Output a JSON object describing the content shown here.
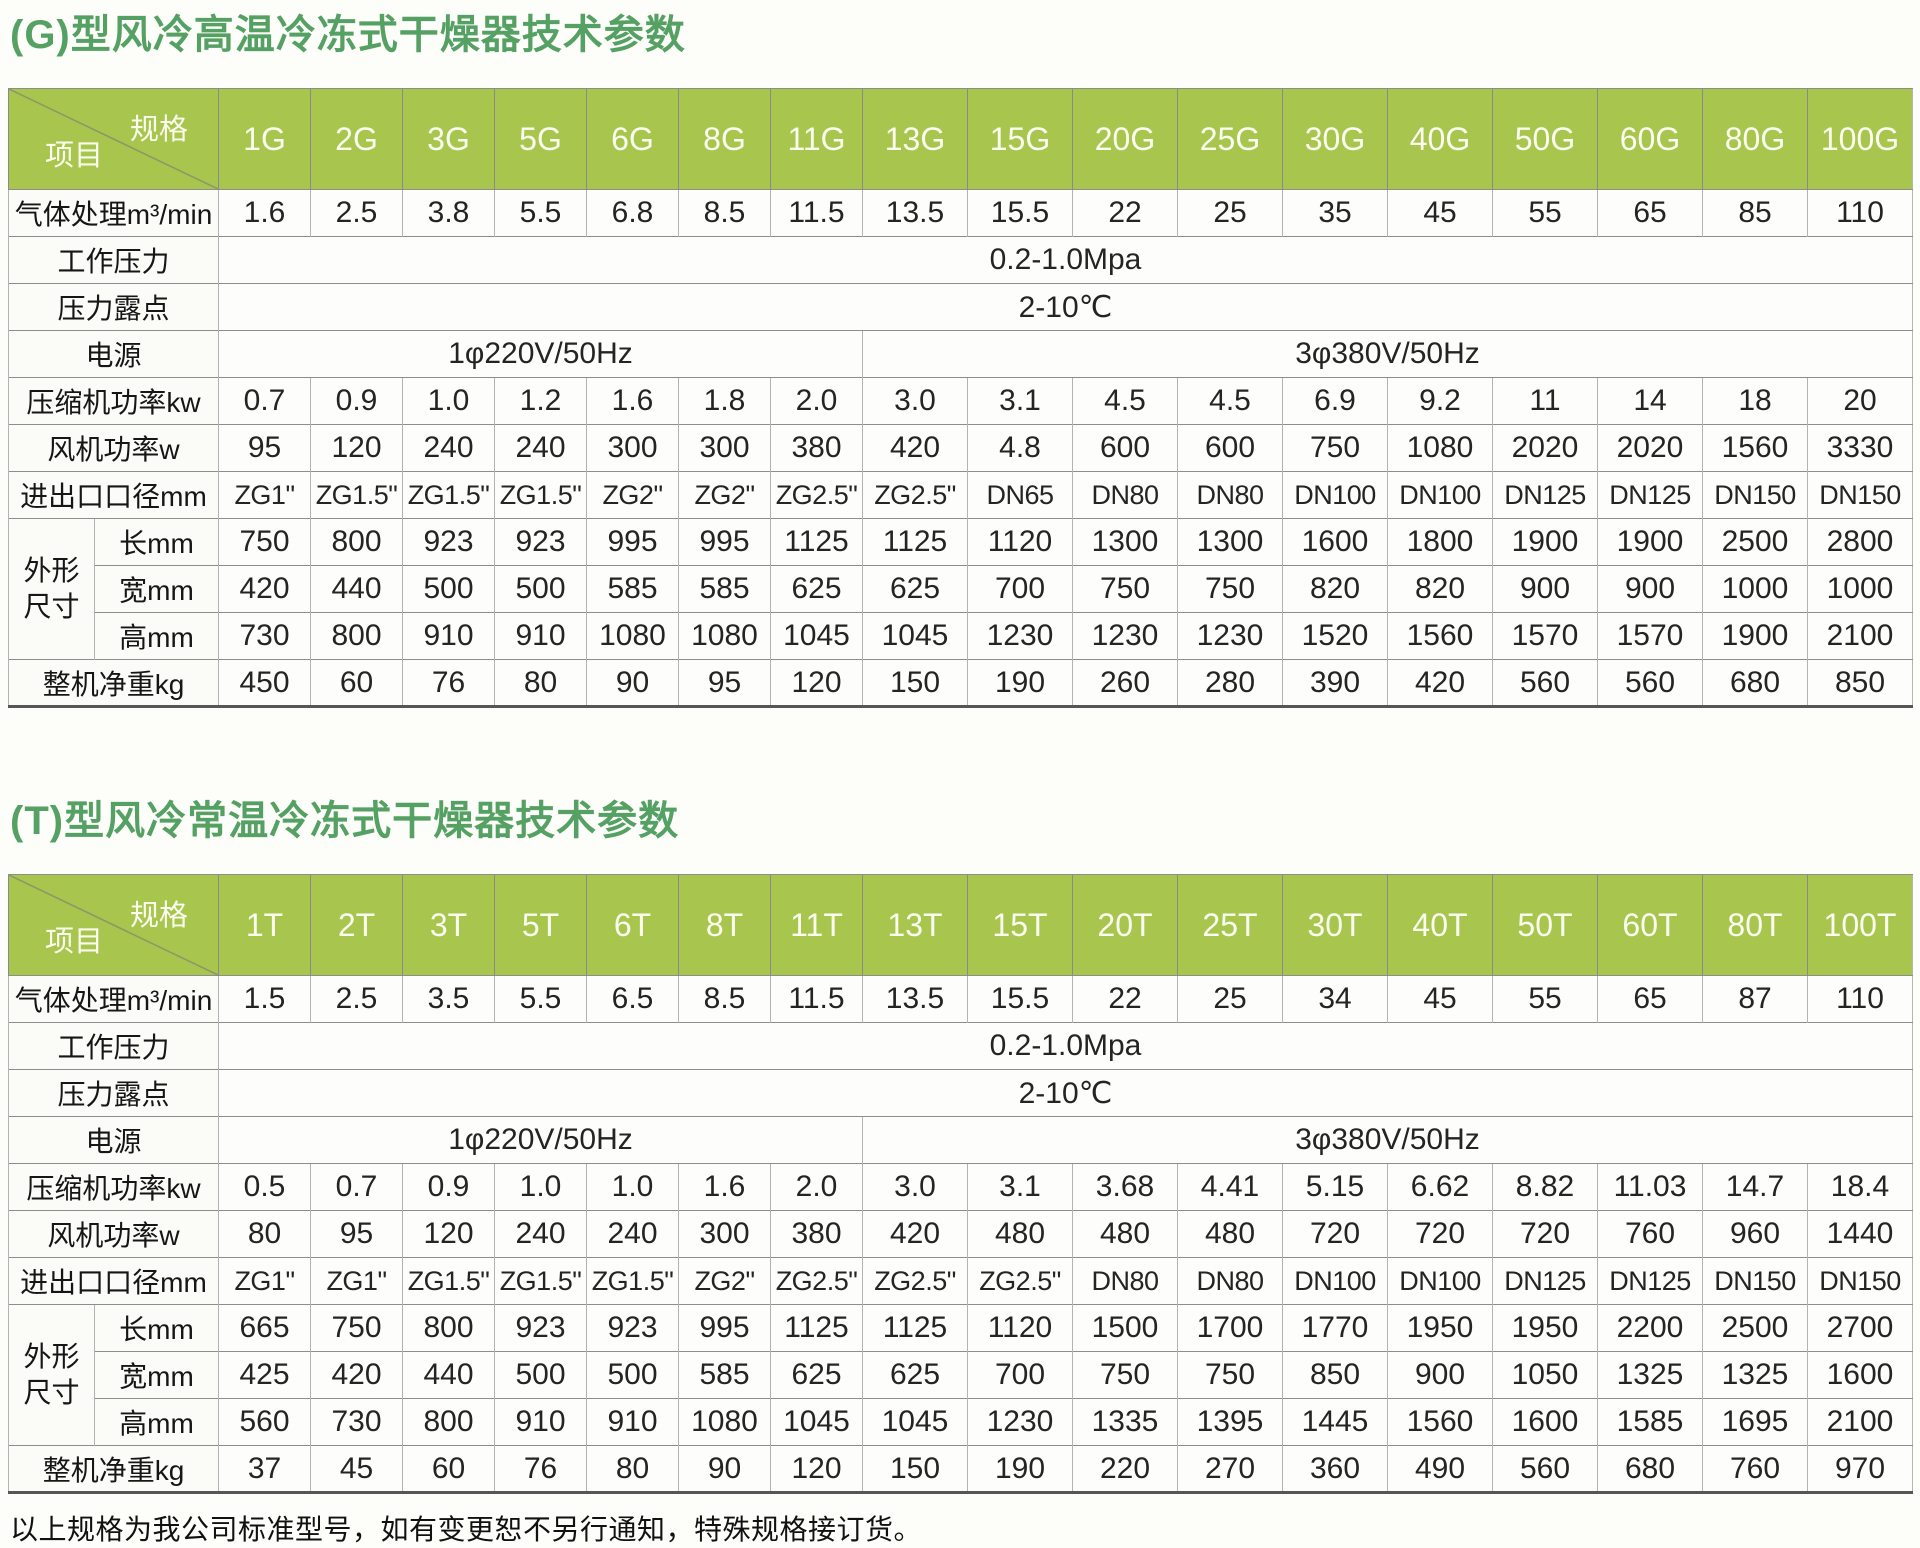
{
  "page": {
    "footer": "以上规格为我公司标准型号，如有变更恕不另行通知，特殊规格接订货。",
    "colors": {
      "header_green": "#a8c64e",
      "title_green": "#55a164",
      "border_dark": "#565656"
    }
  },
  "tables": [
    {
      "key": "g-type",
      "title": "(G)型风冷高温冷冻式干燥器技术参数",
      "corner_top": "规格",
      "corner_bottom": "项目",
      "models": [
        "1G",
        "2G",
        "3G",
        "5G",
        "6G",
        "8G",
        "11G",
        "13G",
        "15G",
        "20G",
        "25G",
        "30G",
        "40G",
        "50G",
        "60G",
        "80G",
        "100G"
      ],
      "rows": {
        "air_flow": {
          "label": "气体处理m³/min",
          "values": [
            "1.6",
            "2.5",
            "3.8",
            "5.5",
            "6.8",
            "8.5",
            "11.5",
            "13.5",
            "15.5",
            "22",
            "25",
            "35",
            "45",
            "55",
            "65",
            "85",
            "110"
          ]
        },
        "working_pressure": {
          "label": "工作压力",
          "value": "0.2-1.0Mpa"
        },
        "dew_point": {
          "label": "压力露点",
          "value": "2-10℃"
        },
        "power_supply": {
          "label": "电源",
          "left": "1φ220V/50Hz",
          "right": "3φ380V/50Hz"
        },
        "compressor_power": {
          "label": "压缩机功率kw",
          "values": [
            "0.7",
            "0.9",
            "1.0",
            "1.2",
            "1.6",
            "1.8",
            "2.0",
            "3.0",
            "3.1",
            "4.5",
            "4.5",
            "6.9",
            "9.2",
            "11",
            "14",
            "18",
            "20"
          ]
        },
        "fan_power": {
          "label": "风机功率w",
          "values": [
            "95",
            "120",
            "240",
            "240",
            "300",
            "300",
            "380",
            "420",
            "4.8",
            "600",
            "600",
            "750",
            "1080",
            "2020",
            "2020",
            "1560",
            "3330"
          ]
        },
        "port_size": {
          "label": "进出口口径mm",
          "values": [
            "ZG1\"",
            "ZG1.5\"",
            "ZG1.5\"",
            "ZG1.5\"",
            "ZG2\"",
            "ZG2\"",
            "ZG2.5\"",
            "ZG2.5\"",
            "DN65",
            "DN80",
            "DN80",
            "DN100",
            "DN100",
            "DN125",
            "DN125",
            "DN150",
            "DN150"
          ]
        },
        "dimensions": {
          "label": "外形尺寸",
          "length": {
            "label": "长mm",
            "values": [
              "750",
              "800",
              "923",
              "923",
              "995",
              "995",
              "1125",
              "1125",
              "1120",
              "1300",
              "1300",
              "1600",
              "1800",
              "1900",
              "1900",
              "2500",
              "2800"
            ]
          },
          "width": {
            "label": "宽mm",
            "values": [
              "420",
              "440",
              "500",
              "500",
              "585",
              "585",
              "625",
              "625",
              "700",
              "750",
              "750",
              "820",
              "820",
              "900",
              "900",
              "1000",
              "1000"
            ]
          },
          "height": {
            "label": "高mm",
            "values": [
              "730",
              "800",
              "910",
              "910",
              "1080",
              "1080",
              "1045",
              "1045",
              "1230",
              "1230",
              "1230",
              "1520",
              "1560",
              "1570",
              "1570",
              "1900",
              "2100"
            ]
          }
        },
        "net_weight": {
          "label": "整机净重kg",
          "values": [
            "450",
            "60",
            "76",
            "80",
            "90",
            "95",
            "120",
            "150",
            "190",
            "260",
            "280",
            "390",
            "420",
            "560",
            "560",
            "680",
            "850"
          ]
        }
      }
    },
    {
      "key": "t-type",
      "title": "(T)型风冷常温冷冻式干燥器技术参数",
      "corner_top": "规格",
      "corner_bottom": "项目",
      "models": [
        "1T",
        "2T",
        "3T",
        "5T",
        "6T",
        "8T",
        "11T",
        "13T",
        "15T",
        "20T",
        "25T",
        "30T",
        "40T",
        "50T",
        "60T",
        "80T",
        "100T"
      ],
      "rows": {
        "air_flow": {
          "label": "气体处理m³/min",
          "values": [
            "1.5",
            "2.5",
            "3.5",
            "5.5",
            "6.5",
            "8.5",
            "11.5",
            "13.5",
            "15.5",
            "22",
            "25",
            "34",
            "45",
            "55",
            "65",
            "87",
            "110"
          ]
        },
        "working_pressure": {
          "label": "工作压力",
          "value": "0.2-1.0Mpa"
        },
        "dew_point": {
          "label": "压力露点",
          "value": "2-10℃"
        },
        "power_supply": {
          "label": "电源",
          "left": "1φ220V/50Hz",
          "right": "3φ380V/50Hz"
        },
        "compressor_power": {
          "label": "压缩机功率kw",
          "values": [
            "0.5",
            "0.7",
            "0.9",
            "1.0",
            "1.0",
            "1.6",
            "2.0",
            "3.0",
            "3.1",
            "3.68",
            "4.41",
            "5.15",
            "6.62",
            "8.82",
            "11.03",
            "14.7",
            "18.4"
          ]
        },
        "fan_power": {
          "label": "风机功率w",
          "values": [
            "80",
            "95",
            "120",
            "240",
            "240",
            "300",
            "380",
            "420",
            "480",
            "480",
            "480",
            "720",
            "720",
            "720",
            "760",
            "960",
            "1440"
          ]
        },
        "port_size": {
          "label": "进出口口径mm",
          "values": [
            "ZG1\"",
            "ZG1\"",
            "ZG1.5\"",
            "ZG1.5\"",
            "ZG1.5\"",
            "ZG2\"",
            "ZG2.5\"",
            "ZG2.5\"",
            "ZG2.5\"",
            "DN80",
            "DN80",
            "DN100",
            "DN100",
            "DN125",
            "DN125",
            "DN150",
            "DN150"
          ]
        },
        "dimensions": {
          "label": "外形尺寸",
          "length": {
            "label": "长mm",
            "values": [
              "665",
              "750",
              "800",
              "923",
              "923",
              "995",
              "1125",
              "1125",
              "1120",
              "1500",
              "1700",
              "1770",
              "1950",
              "1950",
              "2200",
              "2500",
              "2700"
            ]
          },
          "width": {
            "label": "宽mm",
            "values": [
              "425",
              "420",
              "440",
              "500",
              "500",
              "585",
              "625",
              "625",
              "700",
              "750",
              "750",
              "850",
              "900",
              "1050",
              "1325",
              "1325",
              "1600"
            ]
          },
          "height": {
            "label": "高mm",
            "values": [
              "560",
              "730",
              "800",
              "910",
              "910",
              "1080",
              "1045",
              "1045",
              "1230",
              "1335",
              "1395",
              "1445",
              "1560",
              "1600",
              "1585",
              "1695",
              "2100"
            ]
          }
        },
        "net_weight": {
          "label": "整机净重kg",
          "values": [
            "37",
            "45",
            "60",
            "76",
            "80",
            "90",
            "120",
            "150",
            "190",
            "220",
            "270",
            "360",
            "490",
            "560",
            "680",
            "760",
            "970"
          ]
        }
      }
    }
  ]
}
